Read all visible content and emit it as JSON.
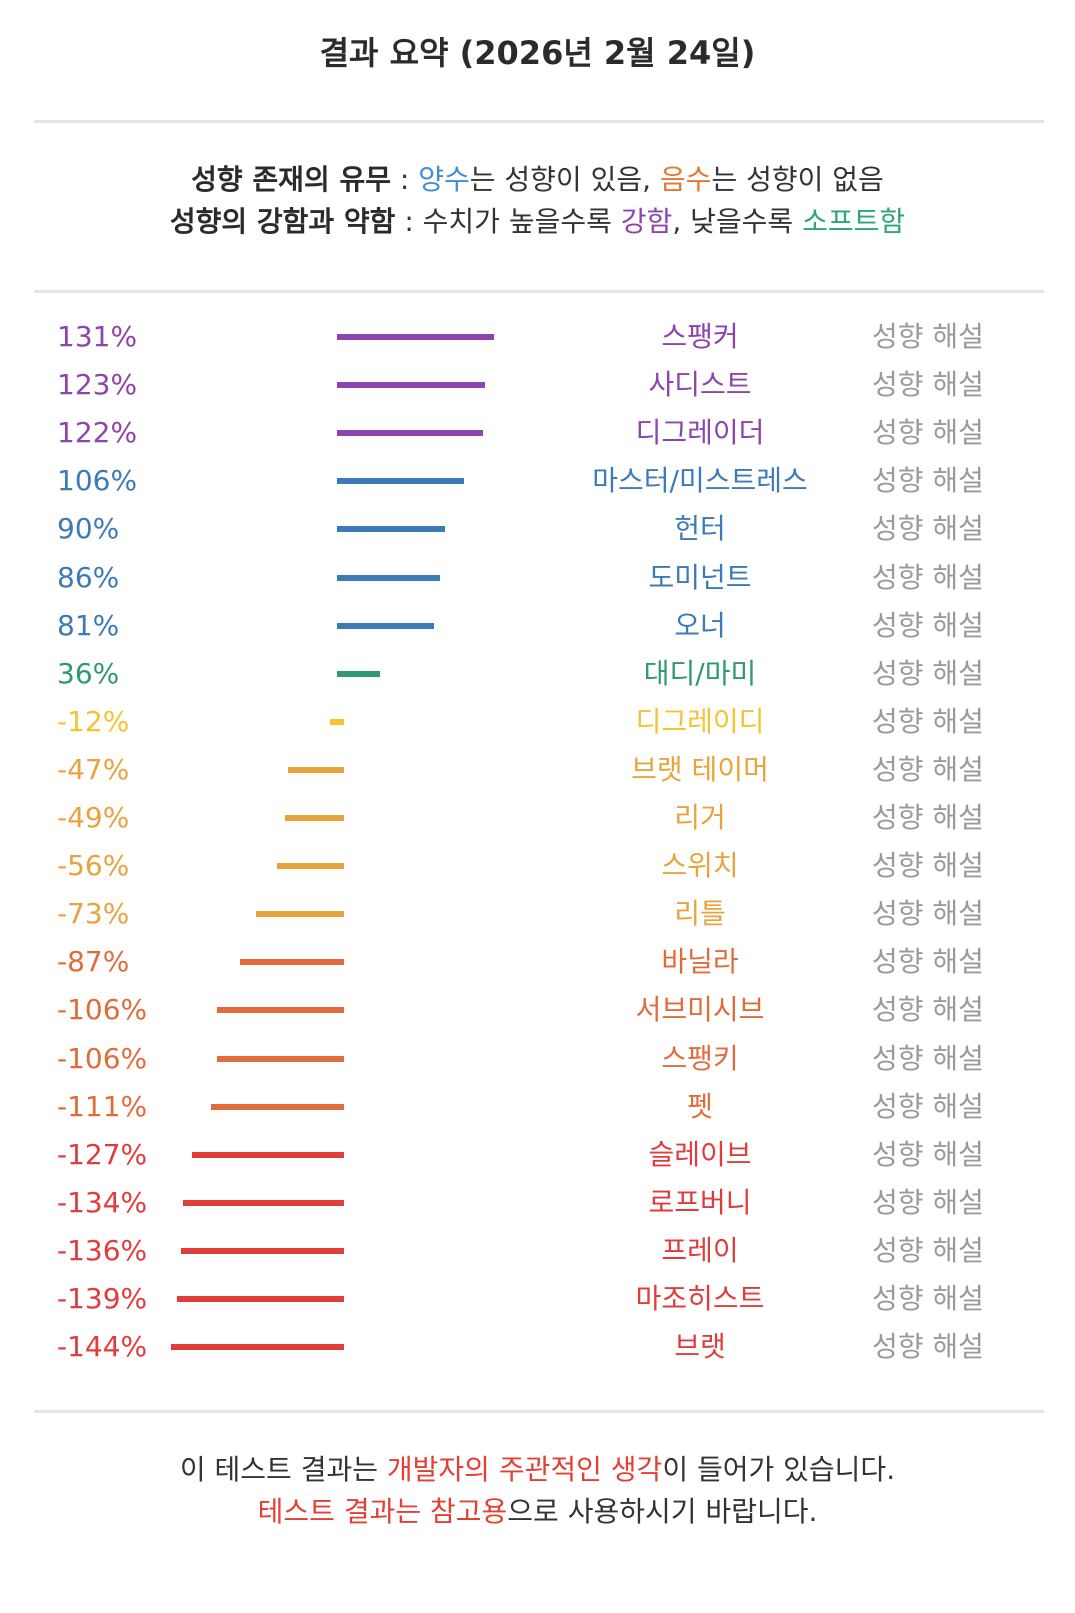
{
  "title": "결과 요약 (2026년 2월 24일)",
  "legend": {
    "line1": {
      "bold": "성향 존재의 유무",
      "sep": " : ",
      "pos_word": "양수",
      "mid": "는 성향이 있음, ",
      "neg_word": "음수",
      "end": "는 성향이 없음"
    },
    "line2": {
      "bold": "성향의 강함과 약함",
      "sep": " : ",
      "text1": "수치가 높을수록 ",
      "strong_word": "강함",
      "text2": ", 낮을수록 ",
      "soft_word": "소프트함"
    }
  },
  "explain_label": "성향 해설",
  "chart_data": {
    "type": "bar",
    "orientation": "horizontal",
    "baseline": 0,
    "categories": [
      "스팽커",
      "사디스트",
      "디그레이더",
      "마스터/미스트레스",
      "헌터",
      "도미넌트",
      "오너",
      "대디/마미",
      "디그레이디",
      "브랫 테이머",
      "리거",
      "스위치",
      "리틀",
      "바닐라",
      "서브미시브",
      "스팽키",
      "펫",
      "슬레이브",
      "로프버니",
      "프레이",
      "마조히스트",
      "브랫"
    ],
    "values": [
      131,
      123,
      122,
      106,
      90,
      86,
      81,
      36,
      -12,
      -47,
      -49,
      -56,
      -73,
      -87,
      -106,
      -106,
      -111,
      -127,
      -134,
      -136,
      -139,
      -144
    ],
    "labels": [
      "131%",
      "123%",
      "122%",
      "106%",
      "90%",
      "86%",
      "81%",
      "36%",
      "-12%",
      "-47%",
      "-49%",
      "-56%",
      "-73%",
      "-87%",
      "-106%",
      "-106%",
      "-111%",
      "-127%",
      "-134%",
      "-136%",
      "-139%",
      "-144%"
    ],
    "colors": [
      "#8e44ad",
      "#8e44ad",
      "#8e44ad",
      "#3d7ab8",
      "#3d7ab8",
      "#3d7ab8",
      "#3d7ab8",
      "#2e9a6d",
      "#f4c430",
      "#e8a33d",
      "#e8a33d",
      "#e8a33d",
      "#e8a33d",
      "#e06c3c",
      "#e06c3c",
      "#e06c3c",
      "#e06c3c",
      "#e03c3c",
      "#e03c3c",
      "#e03c3c",
      "#e03c3c",
      "#e03c3c"
    ],
    "legend_position": "none",
    "grid": false
  },
  "colors": {
    "positive": "#3d8fd1",
    "negative": "#e8762e",
    "strong": "#8e44ad",
    "soft": "#2fa57a",
    "disclaimer": "#e24034"
  },
  "footer": {
    "line1": {
      "a": "이 테스트 결과는 ",
      "b": "개발자의 주관적인 생각",
      "c": "이 들어가 있습니다."
    },
    "line2": {
      "a": "테스트 결과는 참고용",
      "b": "으로 사용하시기 바랍니다."
    }
  }
}
